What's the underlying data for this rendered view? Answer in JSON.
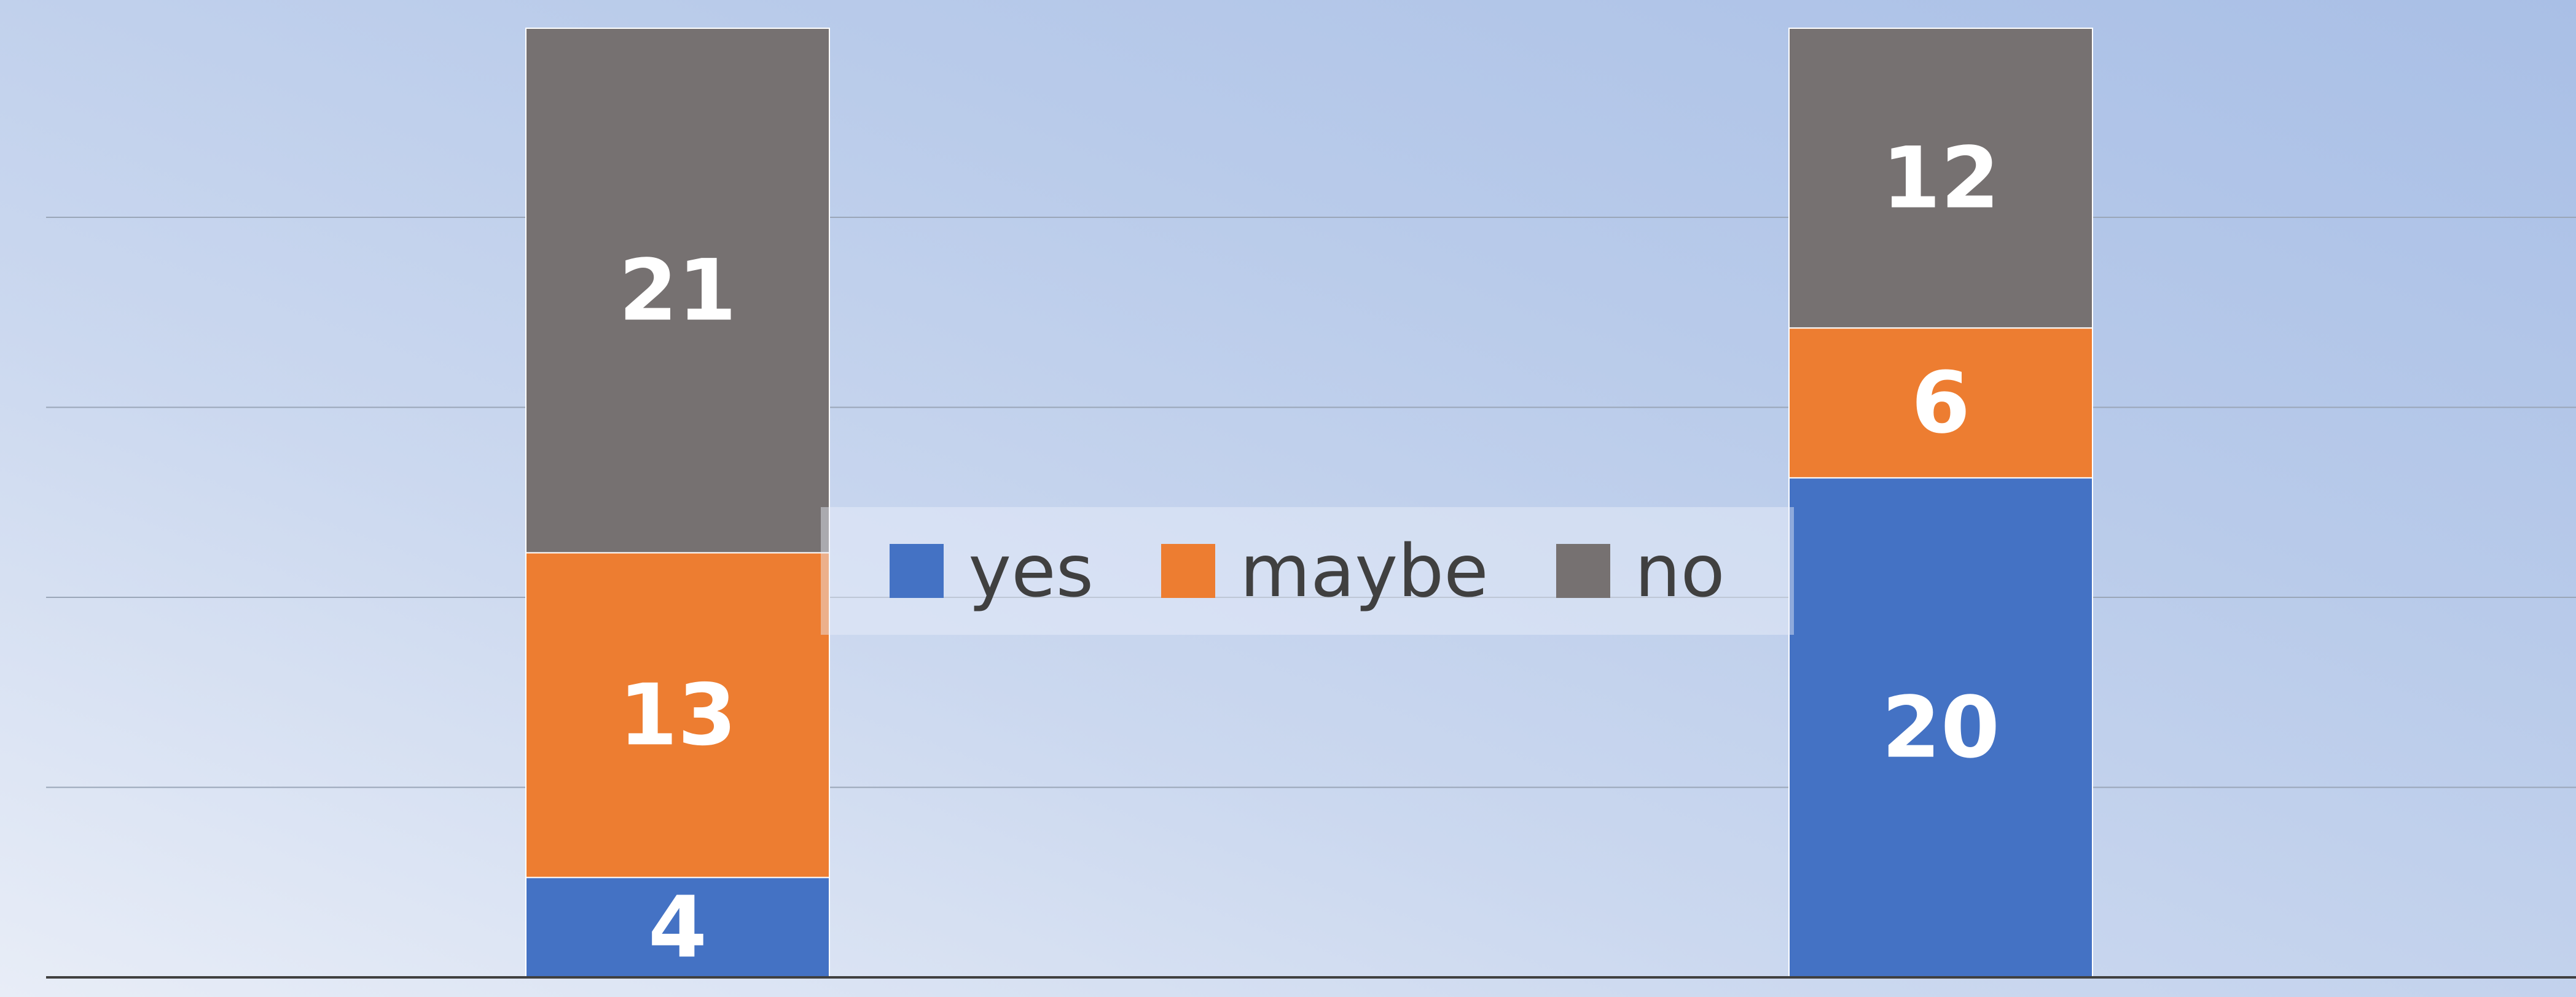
{
  "chart_data": {
    "type": "bar",
    "stacked": true,
    "categories": [
      "",
      ""
    ],
    "series": [
      {
        "name": "yes",
        "color": "#4472c4",
        "values": [
          4,
          20
        ]
      },
      {
        "name": "maybe",
        "color": "#ed7d31",
        "values": [
          13,
          6
        ]
      },
      {
        "name": "no",
        "color": "#767171",
        "values": [
          21,
          12
        ]
      }
    ],
    "title": "",
    "xlabel": "",
    "ylabel": "",
    "ylim": [
      0,
      38
    ],
    "grid": true,
    "legend_position": "center",
    "data_labels": true
  }
}
